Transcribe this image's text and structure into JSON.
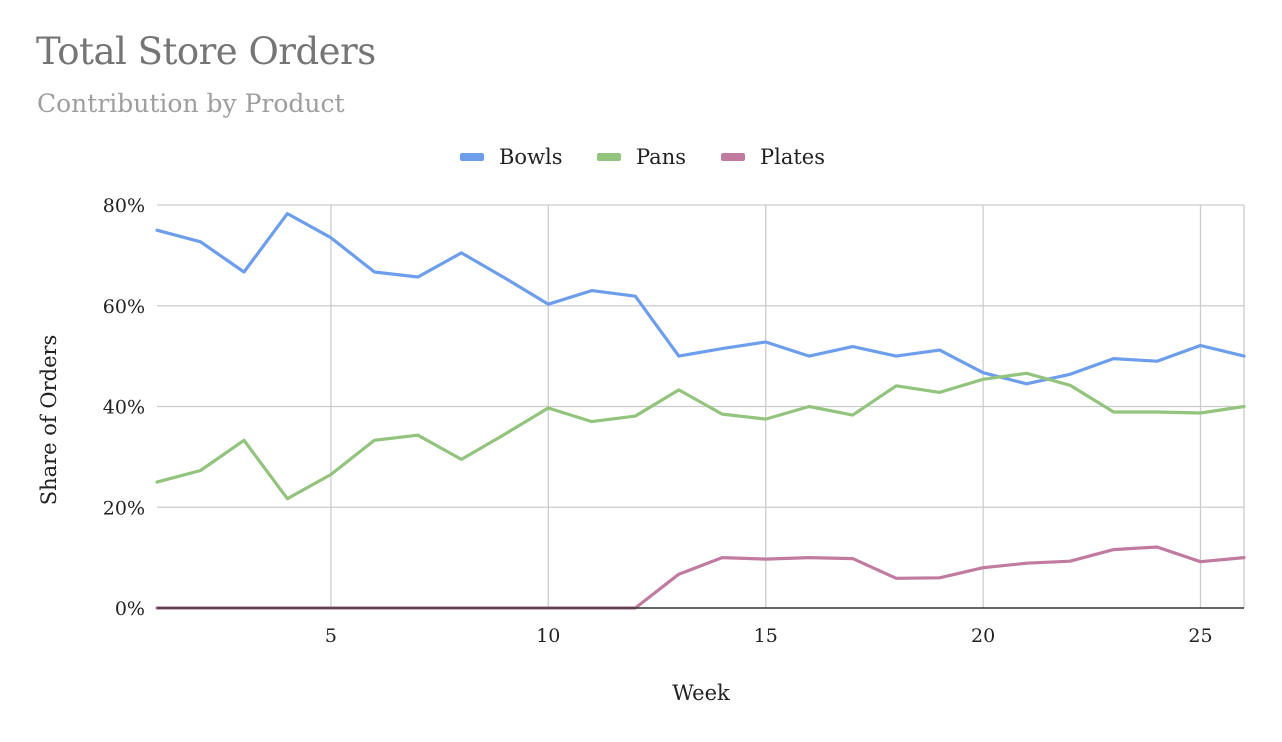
{
  "title": "Total Store Orders",
  "subtitle": "Contribution by Product",
  "chart_data": {
    "type": "line",
    "title": "Total Store Orders",
    "subtitle": "Contribution by Product",
    "xlabel": "Week",
    "ylabel": "Share of Orders",
    "xlim": [
      1,
      26
    ],
    "ylim": [
      0,
      80
    ],
    "x_ticks": [
      "5",
      "10",
      "15",
      "20",
      "25"
    ],
    "y_ticks": [
      "0%",
      "20%",
      "40%",
      "60%",
      "80%"
    ],
    "grid": true,
    "legend_position": "top",
    "x": [
      1,
      2,
      3,
      4,
      5,
      6,
      7,
      8,
      9,
      10,
      11,
      12,
      13,
      14,
      15,
      16,
      17,
      18,
      19,
      20,
      21,
      22,
      23,
      24,
      25,
      26
    ],
    "series": [
      {
        "name": "Bowls",
        "color": "#6d9eeb",
        "values": [
          75,
          72.7,
          66.7,
          78.3,
          73.5,
          66.7,
          65.7,
          70.5,
          65.5,
          60.3,
          63,
          61.9,
          50,
          51.5,
          52.8,
          50,
          51.9,
          50,
          51.2,
          46.7,
          44.5,
          46.4,
          49.5,
          49,
          52.1,
          50
        ]
      },
      {
        "name": "Pans",
        "color": "#93c47d",
        "values": [
          25,
          27.3,
          33.3,
          21.7,
          26.5,
          33.3,
          34.3,
          29.5,
          34.5,
          39.7,
          37,
          38.1,
          43.3,
          38.5,
          37.5,
          40,
          38.3,
          44.1,
          42.8,
          45.4,
          46.6,
          44.2,
          38.9,
          38.9,
          38.7,
          40
        ]
      },
      {
        "name": "Plates",
        "color": "#c27ba0",
        "values": [
          0,
          0,
          0,
          0,
          0,
          0,
          0,
          0,
          0,
          0,
          0,
          0,
          6.7,
          10,
          9.7,
          10,
          9.8,
          5.9,
          6,
          8,
          8.9,
          9.3,
          11.6,
          12.1,
          9.2,
          10
        ]
      }
    ]
  }
}
